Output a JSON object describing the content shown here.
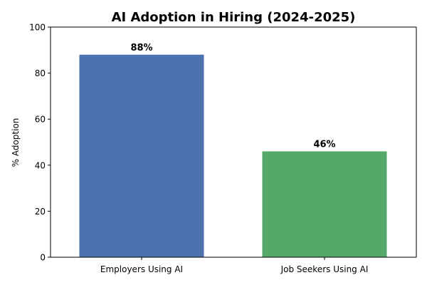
{
  "chart_data": {
    "type": "bar",
    "title": "AI Adoption in Hiring (2024-2025)",
    "xlabel": "",
    "ylabel": "% Adoption",
    "categories": [
      "Employers Using AI",
      "Job Seekers Using AI"
    ],
    "values": [
      88,
      46
    ],
    "data_labels": [
      "88%",
      "46%"
    ],
    "colors": [
      "#4c72b0",
      "#55a868"
    ],
    "ylim": [
      0,
      100
    ],
    "yticks": [
      0,
      20,
      40,
      60,
      80,
      100
    ],
    "grid": false,
    "legend": null
  }
}
